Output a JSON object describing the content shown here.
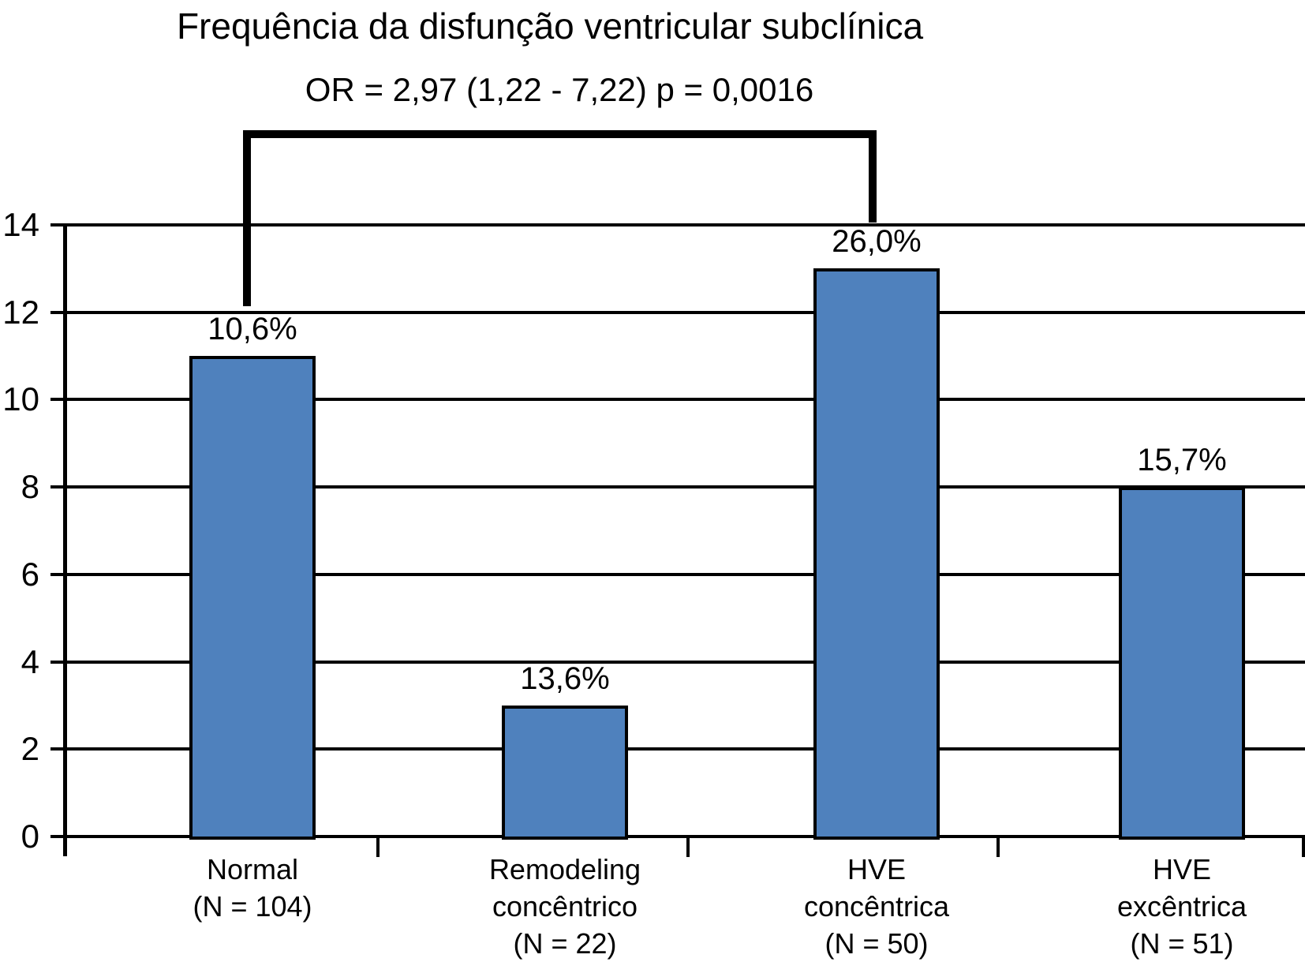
{
  "chart_data": {
    "type": "bar",
    "title": "Frequência da disfunção ventricular subclínica",
    "annotation": "OR = 2,97 (1,22 - 7,22) p = 0,0016",
    "categories": [
      "Normal\n(N = 104)",
      "Remodeling\nconcêntrico\n(N = 22)",
      "HVE\nconcêntrica\n(N = 50)",
      "HVE\nexcêntrica\n(N = 51)"
    ],
    "values": [
      11,
      3,
      13,
      8
    ],
    "bar_labels": [
      "10,6%",
      "13,6%",
      "26,0%",
      "15,7%"
    ],
    "xlabel": "",
    "ylabel": "",
    "ylim": [
      0,
      14
    ],
    "yticks": [
      14,
      12,
      10,
      8,
      6,
      4,
      2,
      0
    ],
    "grid": true,
    "legend": "none",
    "bar_color": "#4F81BD",
    "bar_border_color": "#000000",
    "significance_bracket": {
      "from_category": "Normal (N = 104)",
      "to_category": "HVE concêntrica (N = 50)",
      "label": "OR = 2,97 (1,22 - 7,22) p = 0,0016"
    }
  }
}
